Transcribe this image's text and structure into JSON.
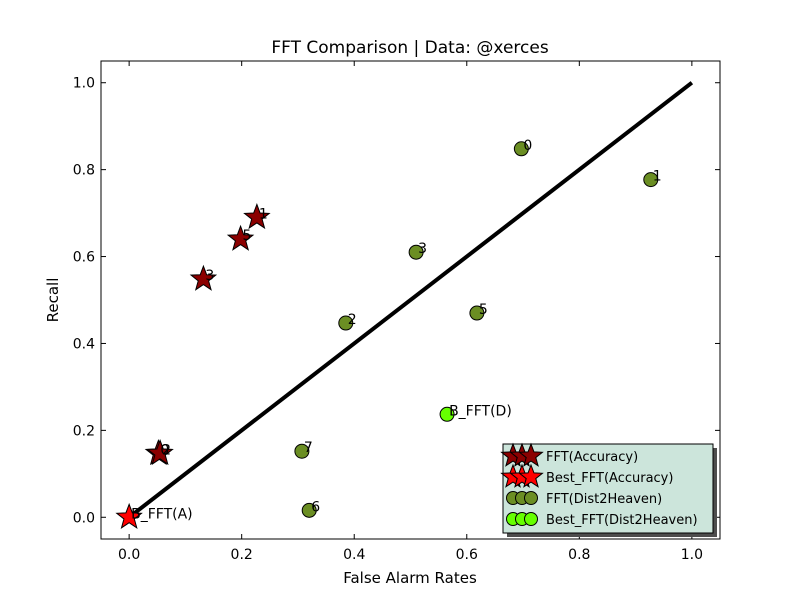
{
  "chart_data": {
    "type": "scatter",
    "title": "FFT Comparison |  Data: @xerces",
    "xlabel": "False Alarm Rates",
    "ylabel": "Recall",
    "xlim": [
      -0.05,
      1.05
    ],
    "ylim": [
      -0.05,
      1.05
    ],
    "xticks": [
      0.0,
      0.2,
      0.4,
      0.6,
      0.8,
      1.0
    ],
    "yticks": [
      0.0,
      0.2,
      0.4,
      0.6,
      0.8,
      1.0
    ],
    "tick_labels": [
      "0.0",
      "0.2",
      "0.4",
      "0.6",
      "0.8",
      "1.0"
    ],
    "grid": false,
    "legend_position": "lower-right",
    "diagonal": {
      "x": [
        0.0,
        1.0
      ],
      "y": [
        0.0,
        1.0
      ],
      "color": "#000000"
    },
    "series": [
      {
        "name": "FFT(Accuracy)",
        "marker": "star",
        "color": "#8b0000",
        "points": [
          {
            "x": 0.227,
            "y": 0.69,
            "label": "1"
          },
          {
            "x": 0.198,
            "y": 0.64,
            "label": "5"
          },
          {
            "x": 0.132,
            "y": 0.548,
            "label": "3"
          },
          {
            "x": 0.052,
            "y": 0.147,
            "label": "0"
          },
          {
            "x": 0.055,
            "y": 0.147,
            "label": "2"
          }
        ]
      },
      {
        "name": "Best_FFT(Accuracy)",
        "marker": "star",
        "color": "#ff0000",
        "points": [
          {
            "x": 0.0,
            "y": 0.0,
            "label": "B_FFT(A)"
          }
        ]
      },
      {
        "name": "FFT(Dist2Heaven)",
        "marker": "circle",
        "color": "#6b8e23",
        "points": [
          {
            "x": 0.697,
            "y": 0.848,
            "label": "0"
          },
          {
            "x": 0.927,
            "y": 0.777,
            "label": "1"
          },
          {
            "x": 0.51,
            "y": 0.61,
            "label": "3"
          },
          {
            "x": 0.385,
            "y": 0.447,
            "label": "2"
          },
          {
            "x": 0.618,
            "y": 0.47,
            "label": "5"
          },
          {
            "x": 0.307,
            "y": 0.152,
            "label": "7"
          },
          {
            "x": 0.32,
            "y": 0.016,
            "label": "6"
          }
        ]
      },
      {
        "name": "Best_FFT(Dist2Heaven)",
        "marker": "circle",
        "color": "#66ff00",
        "points": [
          {
            "x": 0.565,
            "y": 0.237,
            "label": "B_FFT(D)"
          }
        ]
      }
    ]
  }
}
